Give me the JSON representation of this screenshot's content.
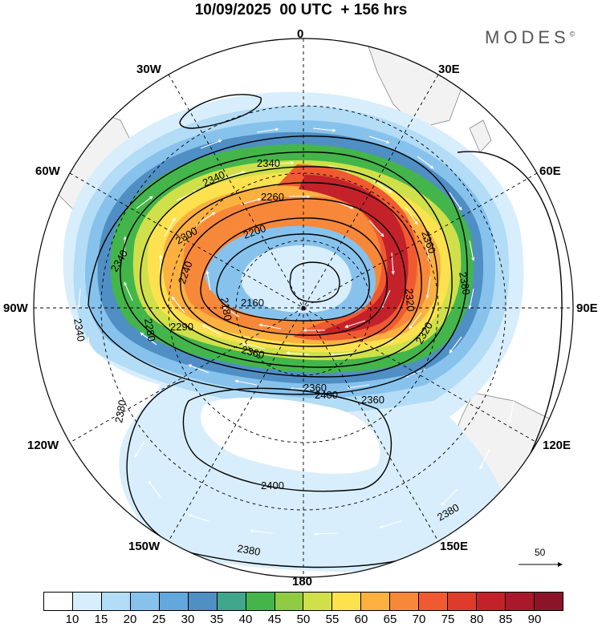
{
  "header": {
    "title": "10/09/2025  00 UTC  + 156 hrs",
    "brand": "MODES",
    "brand_mark": "©"
  },
  "map": {
    "projection": "polar-stereographic-south",
    "longitude_labels": {
      "top": "0",
      "top_left": "30W",
      "top_right": "30E",
      "upper_left": "60W",
      "upper_right": "60E",
      "left": "90W",
      "right": "90E",
      "lower_left": "120W",
      "lower_right": "120E",
      "bottom_left": "150W",
      "bottom_right": "150E",
      "bottom": "180"
    },
    "contour_labels": [
      "2340",
      "2340",
      "2260",
      "2300",
      "2360",
      "2200",
      "2380",
      "2340",
      "2240",
      "2180",
      "2320",
      "2160",
      "2280",
      "2290",
      "2360",
      "2340",
      "2320",
      "2360",
      "2360",
      "2400",
      "2380",
      "2400",
      "2380",
      "2380"
    ],
    "colors": {
      "land": "#f2f2f2",
      "coast": "#888888",
      "contour": "#000000",
      "vector": "#ffffff"
    }
  },
  "reference_vector": {
    "label": "50"
  },
  "colorbar": {
    "ticks": [
      "10",
      "15",
      "20",
      "25",
      "30",
      "35",
      "40",
      "45",
      "50",
      "55",
      "60",
      "65",
      "70",
      "75",
      "80",
      "85",
      "90"
    ],
    "colors": [
      "#ffffff",
      "#d8eefc",
      "#b3dcf6",
      "#87c2ec",
      "#62a8dd",
      "#4f8fc4",
      "#3fa68c",
      "#44b54a",
      "#8fcc44",
      "#cfe04a",
      "#fde14f",
      "#fbb040",
      "#f7883a",
      "#f05a31",
      "#de3b2c",
      "#c4222a",
      "#a8192b",
      "#8a1428"
    ]
  }
}
